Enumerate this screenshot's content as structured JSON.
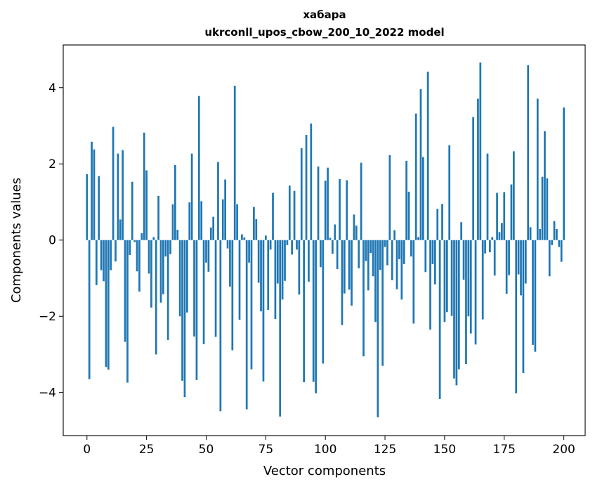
{
  "chart_data": {
    "type": "bar",
    "title": "хабара",
    "subtitle": "ukrconll_upos_cbow_200_10_2022 model",
    "xlabel": "Vector components",
    "ylabel": "Components values",
    "xlim": [
      -9.95,
      208.95
    ],
    "ylim": [
      -5.13,
      5.12
    ],
    "grid": false,
    "legend": "none",
    "bar_color": "#1f77b4",
    "xticks": [
      0,
      25,
      50,
      75,
      100,
      125,
      150,
      175,
      200
    ],
    "xtick_labels": [
      "0",
      "25",
      "50",
      "75",
      "100",
      "125",
      "150",
      "175",
      "200"
    ],
    "yticks": [
      -4,
      -2,
      0,
      2,
      4
    ],
    "ytick_labels": [
      "−4",
      "−2",
      "0",
      "2",
      "4"
    ],
    "series": [
      {
        "values": [
          1.73,
          -3.65,
          2.58,
          2.38,
          -1.18,
          1.68,
          -0.79,
          -1.08,
          -3.33,
          -3.4,
          -0.79,
          2.97,
          -0.56,
          2.27,
          0.54,
          2.36,
          -2.67,
          -3.74,
          -0.39,
          1.53,
          -0.05,
          -0.82,
          -1.35,
          0.18,
          2.82,
          1.83,
          -0.88,
          -1.77,
          0.08,
          -3.0,
          1.16,
          -1.64,
          -1.42,
          -0.43,
          -2.62,
          -0.37,
          0.94,
          1.97,
          0.27,
          -2.0,
          -3.69,
          -4.12,
          -1.9,
          0.99,
          2.27,
          -2.53,
          -3.67,
          3.78,
          1.02,
          -2.73,
          -0.59,
          -0.83,
          0.33,
          0.61,
          -2.54,
          2.05,
          -4.49,
          1.07,
          1.59,
          -0.22,
          -1.22,
          -2.89,
          4.05,
          0.94,
          -2.09,
          0.15,
          0.07,
          -4.44,
          -0.59,
          -3.39,
          0.87,
          0.55,
          -1.12,
          -1.87,
          -3.71,
          0.12,
          -1.83,
          -0.25,
          1.24,
          -2.07,
          -1.14,
          -4.63,
          -1.56,
          -1.07,
          -0.13,
          1.43,
          -0.38,
          1.29,
          -0.25,
          -1.43,
          2.41,
          -3.73,
          2.76,
          -1.09,
          3.06,
          -3.72,
          -4.02,
          1.93,
          -0.71,
          -3.24,
          1.56,
          1.9,
          0.06,
          -0.36,
          0.41,
          -0.76,
          1.6,
          -2.23,
          -1.4,
          1.57,
          -1.3,
          -1.72,
          0.67,
          0.38,
          -0.74,
          2.03,
          -3.05,
          -0.55,
          -1.32,
          -0.34,
          -0.95,
          -2.15,
          -4.65,
          -0.78,
          -3.3,
          -0.18,
          -0.66,
          2.23,
          -1.05,
          0.26,
          -1.29,
          -0.5,
          -1.56,
          -0.63,
          2.08,
          1.27,
          -0.43,
          -2.19,
          3.32,
          0.08,
          3.96,
          2.18,
          -0.84,
          4.42,
          -2.35,
          -0.63,
          -1.16,
          0.82,
          -4.17,
          0.95,
          -2.15,
          -1.89,
          2.49,
          -1.99,
          -3.63,
          -3.81,
          -3.39,
          0.47,
          -1.04,
          -3.25,
          -2.0,
          -2.45,
          3.23,
          -2.74,
          3.71,
          4.66,
          -2.08,
          -0.35,
          2.27,
          -0.32,
          0.08,
          -0.93,
          1.24,
          0.21,
          0.45,
          1.26,
          -1.41,
          -0.92,
          1.46,
          2.33,
          -4.02,
          -0.9,
          -1.45,
          -3.49,
          -1.14,
          4.59,
          0.34,
          -2.75,
          -2.93,
          3.71,
          0.29,
          1.66,
          2.86,
          1.62,
          -0.95,
          -0.13,
          0.5,
          0.29,
          -0.18,
          -0.57,
          3.48
        ]
      }
    ]
  }
}
